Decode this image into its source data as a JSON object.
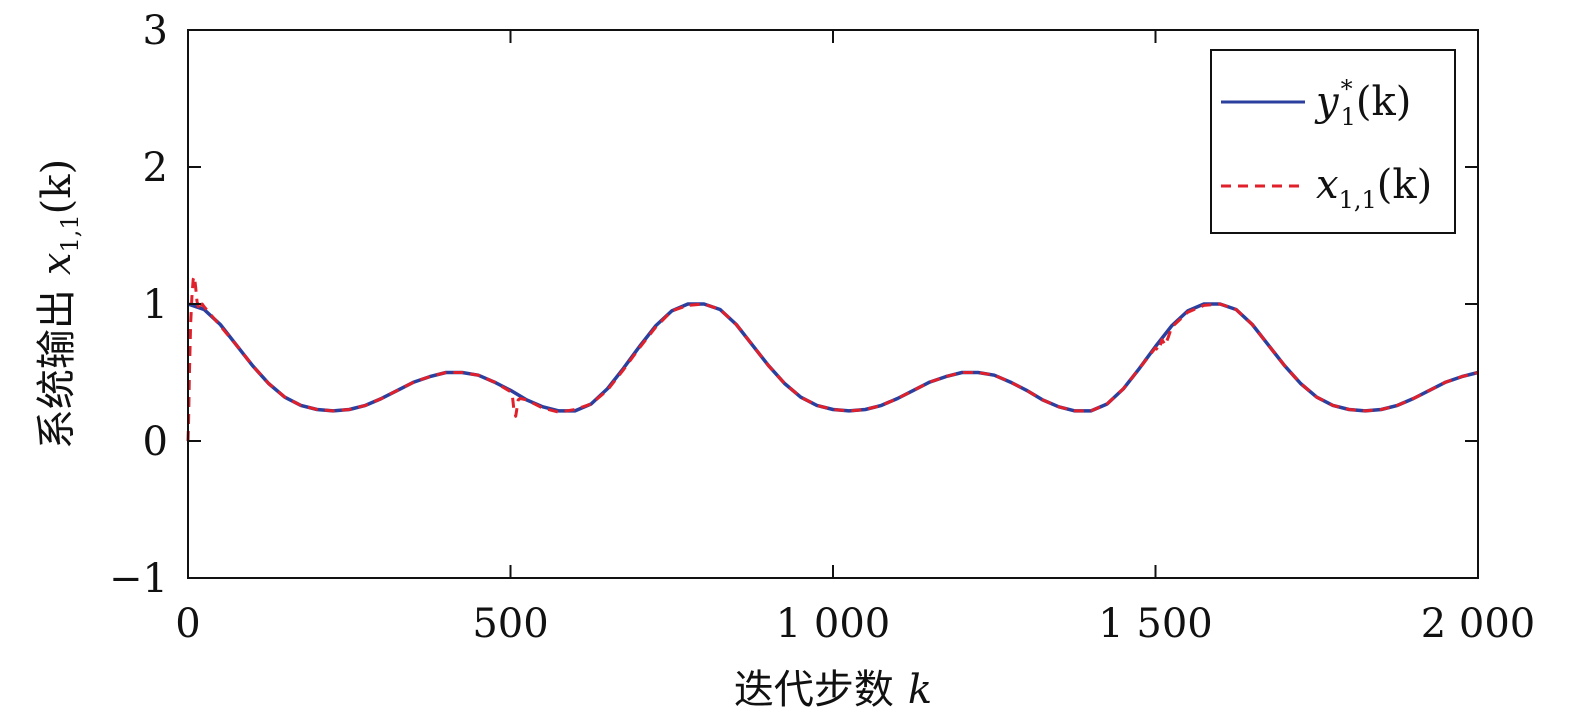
{
  "chart_data": {
    "type": "line",
    "xlabel": {
      "text": "迭代步数",
      "var": "k"
    },
    "ylabel": {
      "text": "系统输出",
      "var": "x",
      "sub": "1,1",
      "arg": "(k)"
    },
    "xlim": [
      0,
      2000
    ],
    "ylim": [
      -1,
      3
    ],
    "xticks": [
      0,
      500,
      1000,
      1500,
      2000
    ],
    "xtick_labels": [
      "0",
      "500",
      "1 000",
      "1 500",
      "2 000"
    ],
    "yticks": [
      -1,
      0,
      1,
      2,
      3
    ],
    "ytick_labels": [
      "−1",
      "0",
      "1",
      "2",
      "3"
    ],
    "grid": false,
    "legend_position": "top-right",
    "series": [
      {
        "name": "y*1(k)",
        "legend": {
          "var": "y",
          "sup": "*",
          "sub": "1",
          "arg": "(k)"
        },
        "color": "#2a3f9e",
        "style": "solid",
        "x": [
          0,
          25,
          50,
          75,
          100,
          125,
          150,
          175,
          200,
          225,
          250,
          275,
          300,
          325,
          350,
          375,
          400,
          425,
          450,
          475,
          500,
          525,
          550,
          575,
          600,
          625,
          650,
          675,
          700,
          725,
          750,
          775,
          800,
          825,
          850,
          875,
          900,
          925,
          950,
          975,
          1000,
          1025,
          1050,
          1075,
          1100,
          1125,
          1150,
          1175,
          1200,
          1225,
          1250,
          1275,
          1300,
          1325,
          1350,
          1375,
          1400,
          1425,
          1450,
          1475,
          1500,
          1525,
          1550,
          1575,
          1600,
          1625,
          1650,
          1675,
          1700,
          1725,
          1750,
          1775,
          1800,
          1825,
          1850,
          1875,
          1900,
          1925,
          1950,
          1975,
          2000
        ],
        "y": [
          1.0,
          0.96,
          0.85,
          0.7,
          0.55,
          0.42,
          0.32,
          0.26,
          0.23,
          0.22,
          0.23,
          0.26,
          0.31,
          0.37,
          0.43,
          0.47,
          0.5,
          0.5,
          0.48,
          0.43,
          0.37,
          0.3,
          0.25,
          0.22,
          0.22,
          0.27,
          0.38,
          0.53,
          0.69,
          0.84,
          0.95,
          1.0,
          1.0,
          0.96,
          0.85,
          0.7,
          0.55,
          0.42,
          0.32,
          0.26,
          0.23,
          0.22,
          0.23,
          0.26,
          0.31,
          0.37,
          0.43,
          0.47,
          0.5,
          0.5,
          0.48,
          0.43,
          0.37,
          0.3,
          0.25,
          0.22,
          0.22,
          0.27,
          0.38,
          0.53,
          0.69,
          0.84,
          0.95,
          1.0,
          1.0,
          0.96,
          0.85,
          0.7,
          0.55,
          0.42,
          0.32,
          0.26,
          0.23,
          0.22,
          0.23,
          0.26,
          0.31,
          0.37,
          0.43,
          0.47,
          0.5
        ]
      },
      {
        "name": "x1,1(k)",
        "legend": {
          "var": "x",
          "sub": "1,1",
          "arg": "(k)"
        },
        "color": "#e0202a",
        "style": "dashed",
        "x": [
          0,
          1,
          2,
          4,
          6,
          8,
          10,
          12,
          14,
          16,
          18,
          20,
          22,
          25,
          50,
          75,
          100,
          125,
          150,
          175,
          200,
          225,
          250,
          275,
          300,
          325,
          350,
          375,
          400,
          425,
          450,
          475,
          500,
          503,
          505,
          508,
          510,
          512,
          515,
          525,
          550,
          575,
          600,
          625,
          650,
          675,
          700,
          725,
          750,
          775,
          800,
          825,
          850,
          875,
          900,
          925,
          950,
          975,
          1000,
          1025,
          1050,
          1075,
          1100,
          1125,
          1150,
          1175,
          1200,
          1225,
          1250,
          1275,
          1300,
          1325,
          1350,
          1375,
          1400,
          1425,
          1450,
          1475,
          1500,
          1505,
          1510,
          1515,
          1520,
          1525,
          1550,
          1575,
          1600,
          1625,
          1650,
          1675,
          1700,
          1725,
          1750,
          1775,
          1800,
          1825,
          1850,
          1875,
          1900,
          1925,
          1950,
          1975,
          2000
        ],
        "y": [
          0.0,
          0.15,
          0.45,
          0.85,
          1.05,
          1.18,
          1.2,
          1.12,
          1.02,
          0.98,
          1.0,
          0.97,
          1.0,
          0.98,
          0.84,
          0.7,
          0.55,
          0.42,
          0.32,
          0.26,
          0.23,
          0.22,
          0.23,
          0.26,
          0.31,
          0.37,
          0.43,
          0.47,
          0.5,
          0.5,
          0.48,
          0.43,
          0.36,
          0.33,
          0.24,
          0.18,
          0.24,
          0.3,
          0.31,
          0.3,
          0.24,
          0.21,
          0.23,
          0.27,
          0.37,
          0.52,
          0.68,
          0.83,
          0.95,
          0.99,
          1.0,
          0.96,
          0.85,
          0.7,
          0.55,
          0.42,
          0.32,
          0.26,
          0.23,
          0.22,
          0.23,
          0.26,
          0.31,
          0.37,
          0.43,
          0.47,
          0.5,
          0.5,
          0.48,
          0.43,
          0.37,
          0.3,
          0.25,
          0.22,
          0.22,
          0.27,
          0.38,
          0.53,
          0.68,
          0.66,
          0.74,
          0.7,
          0.76,
          0.83,
          0.94,
          0.99,
          1.0,
          0.96,
          0.85,
          0.7,
          0.55,
          0.42,
          0.32,
          0.26,
          0.23,
          0.22,
          0.23,
          0.26,
          0.31,
          0.37,
          0.43,
          0.47,
          0.5
        ]
      }
    ]
  }
}
